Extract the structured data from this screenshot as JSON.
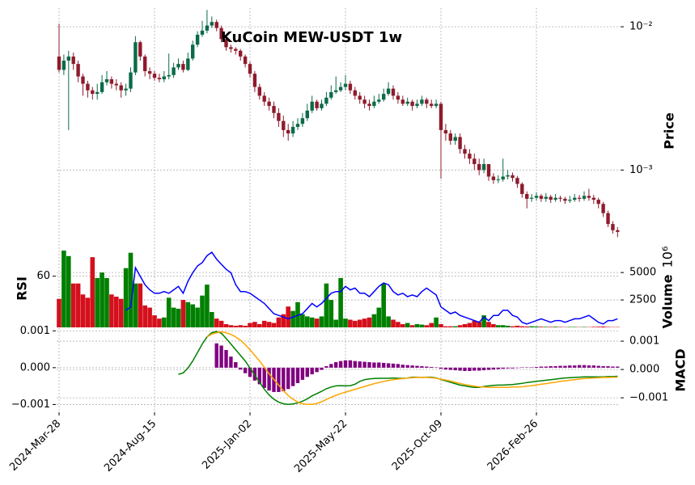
{
  "chart_data": {
    "type": "candlestick",
    "title": "KuCoin MEW-USDT 1w",
    "categories": [
      "2024-Mar-28",
      null,
      null,
      null,
      null,
      null,
      null,
      null,
      null,
      null,
      null,
      null,
      null,
      null,
      null,
      null,
      null,
      null,
      null,
      null,
      "2024-Aug-15",
      null,
      null,
      null,
      null,
      null,
      null,
      null,
      null,
      null,
      null,
      null,
      null,
      null,
      null,
      null,
      null,
      null,
      null,
      null,
      "2025-Jan-02",
      null,
      null,
      null,
      null,
      null,
      null,
      null,
      null,
      null,
      null,
      null,
      null,
      null,
      null,
      null,
      null,
      null,
      null,
      null,
      "2025-May-22",
      null,
      null,
      null,
      null,
      null,
      null,
      null,
      null,
      null,
      null,
      null,
      null,
      null,
      null,
      null,
      null,
      null,
      null,
      null,
      "2025-Oct-09",
      null,
      null,
      null,
      null,
      null,
      null,
      null,
      null,
      null,
      null,
      null,
      null,
      null,
      null,
      null,
      null,
      null,
      null,
      null,
      "2026-Feb-26",
      null,
      null,
      null,
      null,
      null,
      null,
      null,
      null,
      null,
      null,
      null,
      null,
      null,
      null,
      null,
      null,
      null
    ],
    "open": [
      0.0062,
      0.005,
      0.0058,
      0.0062,
      0.0055,
      0.0045,
      0.004,
      0.0036,
      0.0034,
      0.0035,
      0.0041,
      0.0043,
      0.004,
      0.0039,
      0.0036,
      0.0037,
      0.0048,
      0.0078,
      0.0062,
      0.0049,
      0.0047,
      0.0044,
      0.0043,
      0.0045,
      0.0046,
      0.0052,
      0.0055,
      0.005,
      0.006,
      0.0075,
      0.0088,
      0.0094,
      0.0102,
      0.0108,
      0.0098,
      0.0082,
      0.0072,
      0.007,
      0.0068,
      0.0062,
      0.0055,
      0.0047,
      0.0038,
      0.0033,
      0.003,
      0.0028,
      0.0025,
      0.0022,
      0.0019,
      0.0018,
      0.002,
      0.0021,
      0.0023,
      0.0026,
      0.003,
      0.0027,
      0.0029,
      0.0032,
      0.0035,
      0.0036,
      0.0038,
      0.004,
      0.0036,
      0.0033,
      0.0031,
      0.0029,
      0.0028,
      0.003,
      0.0031,
      0.0034,
      0.0037,
      0.0033,
      0.0031,
      0.0029,
      0.003,
      0.0028,
      0.0029,
      0.0031,
      0.0029,
      0.0028,
      0.0029,
      0.0019,
      0.0018,
      0.0016,
      0.0017,
      0.0014,
      0.0013,
      0.0012,
      0.0011,
      0.001,
      0.0011,
      0.0009,
      0.00085,
      0.00086,
      0.0009,
      0.00092,
      0.00088,
      0.0008,
      0.00068,
      0.00063,
      0.00064,
      0.00066,
      0.00063,
      0.00065,
      0.00062,
      0.00064,
      0.00063,
      0.00061,
      0.00062,
      0.00064,
      0.00063,
      0.00066,
      0.00064,
      0.00062,
      0.00058,
      0.0005,
      0.00042,
      0.00038
    ],
    "high": [
      0.0105,
      0.0064,
      0.0068,
      0.0066,
      0.0058,
      0.0047,
      0.0042,
      0.0038,
      0.004,
      0.0046,
      0.0049,
      0.0045,
      0.0043,
      0.0041,
      0.004,
      0.0052,
      0.0086,
      0.008,
      0.0064,
      0.0052,
      0.0049,
      0.0047,
      0.0049,
      0.0065,
      0.0056,
      0.006,
      0.0058,
      0.0066,
      0.008,
      0.0093,
      0.011,
      0.0131,
      0.0118,
      0.0112,
      0.0102,
      0.0085,
      0.0075,
      0.0072,
      0.007,
      0.0064,
      0.0057,
      0.0049,
      0.004,
      0.0035,
      0.0032,
      0.003,
      0.0027,
      0.0024,
      0.0021,
      0.0022,
      0.0023,
      0.0025,
      0.0029,
      0.0033,
      0.0031,
      0.0031,
      0.0035,
      0.0039,
      0.0045,
      0.0041,
      0.0046,
      0.0042,
      0.0038,
      0.0035,
      0.0033,
      0.0031,
      0.0033,
      0.0034,
      0.0037,
      0.0041,
      0.0039,
      0.0035,
      0.0033,
      0.0032,
      0.0031,
      0.0031,
      0.0033,
      0.0032,
      0.0031,
      0.0031,
      0.003,
      0.0021,
      0.0019,
      0.0018,
      0.0018,
      0.0015,
      0.0014,
      0.0013,
      0.0012,
      0.0012,
      0.0011,
      0.00095,
      0.00092,
      0.0012,
      0.001,
      0.00096,
      0.00091,
      0.00082,
      0.00071,
      0.00068,
      0.0007,
      0.00068,
      0.00069,
      0.00067,
      0.00068,
      0.00066,
      0.00065,
      0.00066,
      0.00068,
      0.00067,
      0.00071,
      0.00074,
      0.00067,
      0.00064,
      0.0006,
      0.00052,
      0.00044,
      0.0004
    ],
    "low": [
      0.0048,
      0.0046,
      0.0019,
      0.005,
      0.0041,
      0.0033,
      0.0032,
      0.0031,
      0.0031,
      0.0034,
      0.0039,
      0.0037,
      0.0036,
      0.0032,
      0.0033,
      0.0035,
      0.0046,
      0.0058,
      0.0045,
      0.0043,
      0.0042,
      0.0041,
      0.0041,
      0.0043,
      0.0044,
      0.005,
      0.0048,
      0.0049,
      0.0058,
      0.0072,
      0.0085,
      0.009,
      0.0098,
      0.0093,
      0.0078,
      0.0068,
      0.0066,
      0.0064,
      0.0058,
      0.0052,
      0.0044,
      0.0035,
      0.0031,
      0.0028,
      0.0026,
      0.0023,
      0.002,
      0.0017,
      0.0016,
      0.0017,
      0.0019,
      0.002,
      0.0022,
      0.0025,
      0.0026,
      0.0026,
      0.0028,
      0.0031,
      0.0034,
      0.0035,
      0.0036,
      0.0034,
      0.0031,
      0.0029,
      0.0027,
      0.0026,
      0.0027,
      0.0029,
      0.003,
      0.0033,
      0.0031,
      0.0029,
      0.0028,
      0.0028,
      0.0026,
      0.0027,
      0.0028,
      0.0027,
      0.0027,
      0.0027,
      0.00087,
      0.0016,
      0.0015,
      0.0015,
      0.0013,
      0.0012,
      0.0011,
      0.001,
      0.00092,
      0.00095,
      0.00084,
      0.0008,
      0.00081,
      0.00083,
      0.00086,
      0.00083,
      0.00075,
      0.00064,
      0.00054,
      0.0006,
      0.00061,
      0.0006,
      0.0006,
      0.00059,
      0.0006,
      0.0006,
      0.00058,
      0.00059,
      0.0006,
      0.0006,
      0.00061,
      0.00061,
      0.00058,
      0.00054,
      0.00047,
      0.0004,
      0.00036,
      0.00034
    ],
    "close": [
      0.005,
      0.0058,
      0.0062,
      0.0055,
      0.0045,
      0.004,
      0.0036,
      0.0034,
      0.0035,
      0.0041,
      0.0043,
      0.004,
      0.0039,
      0.0036,
      0.0037,
      0.0048,
      0.0078,
      0.0062,
      0.0049,
      0.0047,
      0.0044,
      0.0043,
      0.0045,
      0.0046,
      0.0052,
      0.0055,
      0.005,
      0.006,
      0.0075,
      0.0088,
      0.0094,
      0.0102,
      0.0108,
      0.0098,
      0.0082,
      0.0072,
      0.007,
      0.0068,
      0.0062,
      0.0055,
      0.0047,
      0.0038,
      0.0033,
      0.003,
      0.0028,
      0.0025,
      0.0022,
      0.0019,
      0.0018,
      0.002,
      0.0021,
      0.0023,
      0.0026,
      0.003,
      0.0027,
      0.0029,
      0.0032,
      0.0035,
      0.0036,
      0.0038,
      0.004,
      0.0036,
      0.0033,
      0.0031,
      0.0029,
      0.0028,
      0.003,
      0.0031,
      0.0034,
      0.0037,
      0.0033,
      0.0031,
      0.0029,
      0.003,
      0.0028,
      0.0029,
      0.0031,
      0.0029,
      0.0028,
      0.0029,
      0.0019,
      0.0018,
      0.0016,
      0.0017,
      0.0014,
      0.0013,
      0.0012,
      0.0011,
      0.001,
      0.0011,
      0.0009,
      0.00085,
      0.00086,
      0.0009,
      0.00092,
      0.00088,
      0.0008,
      0.00068,
      0.00063,
      0.00064,
      0.00066,
      0.00063,
      0.00065,
      0.00062,
      0.00064,
      0.00063,
      0.00061,
      0.00062,
      0.00064,
      0.00063,
      0.00066,
      0.00064,
      0.00062,
      0.00058,
      0.0005,
      0.00042,
      0.00038,
      0.00037
    ],
    "up_color": "#0b6b48",
    "down_color": "#8e1b2c",
    "ylabel": "Price",
    "log_scale": true,
    "grid": true,
    "ylim": [
      0.0003,
      0.0135
    ],
    "yticks": [
      {
        "value": 0.01,
        "label": "10⁻²"
      },
      {
        "value": 0.001,
        "label": "10⁻³"
      }
    ],
    "volume": {
      "label": "Volume",
      "offset_label": "10⁶",
      "up_color": "#008000",
      "down_color": "#d4101c",
      "ylim": [
        0,
        7000
      ],
      "yticks": [
        2500,
        5000
      ],
      "values": [
        2600,
        7000,
        6500,
        4000,
        4000,
        3000,
        2700,
        6400,
        4500,
        5000,
        4500,
        3000,
        2800,
        2600,
        5400,
        6800,
        4000,
        4000,
        2000,
        1800,
        1100,
        800,
        900,
        2700,
        1800,
        1700,
        2500,
        2300,
        2100,
        1800,
        2900,
        3900,
        1400,
        800,
        600,
        300,
        200,
        150,
        200,
        150,
        400,
        500,
        300,
        600,
        500,
        400,
        900,
        1200,
        1900,
        1500,
        2300,
        1200,
        1000,
        900,
        800,
        1000,
        4000,
        2500,
        700,
        4500,
        800,
        700,
        600,
        700,
        800,
        900,
        1200,
        1800,
        4000,
        1000,
        700,
        500,
        300,
        400,
        200,
        300,
        250,
        200,
        400,
        900,
        300,
        100,
        100,
        100,
        200,
        300,
        400,
        600,
        500,
        1100,
        500,
        300,
        200,
        200,
        150,
        100,
        150,
        100,
        80,
        100,
        80,
        60,
        50,
        50,
        60,
        40,
        30,
        40,
        40,
        30,
        40,
        30,
        50,
        60,
        80,
        40,
        30,
        30
      ]
    },
    "rsi": {
      "label": "RSI",
      "color": "#0000ff",
      "ylim": [
        30,
        75
      ],
      "yticks": [
        60
      ],
      "values": [
        null,
        null,
        null,
        null,
        null,
        null,
        null,
        null,
        null,
        null,
        null,
        null,
        null,
        null,
        40,
        42,
        65,
        60,
        55,
        52,
        50,
        50,
        51,
        50,
        52,
        54,
        50,
        57,
        62,
        66,
        68,
        72,
        74,
        70,
        67,
        64,
        62,
        55,
        51,
        51,
        50,
        48,
        46,
        44,
        41,
        38,
        37,
        36,
        35,
        36,
        37,
        38,
        41,
        44,
        42,
        44,
        47,
        50,
        51,
        51,
        54,
        52,
        53,
        50,
        50,
        48,
        51,
        54,
        56,
        55,
        51,
        49,
        50,
        48,
        49,
        48,
        51,
        53,
        51,
        49,
        42,
        40,
        38,
        39,
        37,
        36,
        35,
        34,
        33,
        36,
        34,
        37,
        37,
        40,
        40,
        37,
        36,
        33,
        32,
        33,
        34,
        35,
        34,
        33,
        34,
        34,
        33,
        34,
        35,
        35,
        36,
        37,
        35,
        33,
        32,
        34,
        34,
        35
      ]
    },
    "macd": {
      "label": "MACD",
      "ylim": [
        -0.00121,
        0.00105
      ],
      "yticks": [
        {
          "value": 0.001,
          "label": "0.001"
        },
        {
          "value": 0,
          "label": "0.000"
        },
        {
          "value": -0.001,
          "label": "−0.001"
        }
      ],
      "y2lim": [
        -0.00151,
        0.00143
      ],
      "y2ticks": [
        {
          "value": 0.001,
          "label": "0.001"
        },
        {
          "value": 0,
          "label": "0.000"
        },
        {
          "value": -0.001,
          "label": "−0.001"
        }
      ],
      "histogram_color": "#800080",
      "histogram": [
        null,
        null,
        null,
        null,
        null,
        null,
        null,
        null,
        null,
        null,
        null,
        null,
        null,
        null,
        null,
        null,
        null,
        null,
        null,
        null,
        null,
        null,
        null,
        null,
        null,
        null,
        null,
        null,
        null,
        null,
        null,
        null,
        null,
        0.00066,
        0.0006,
        0.00048,
        0.0003,
        0.00015,
        -5e-05,
        -0.00015,
        -0.00025,
        -0.00035,
        -0.00045,
        -0.00055,
        -0.00062,
        -0.00066,
        -0.00066,
        -0.00064,
        -0.00058,
        -0.0005,
        -0.00042,
        -0.00033,
        -0.00025,
        -0.00018,
        -0.00012,
        -6e-05,
        4e-05,
        0.0001,
        0.00015,
        0.00018,
        0.0002,
        0.0002,
        0.00018,
        0.00017,
        0.00016,
        0.00015,
        0.00014,
        0.00014,
        0.00013,
        0.00012,
        0.00011,
        0.0001,
        8e-05,
        7e-05,
        6e-05,
        5e-05,
        4e-05,
        3e-05,
        2e-05,
        1e-05,
        -3e-05,
        -5e-05,
        -6e-05,
        -7e-05,
        -8e-05,
        -9e-05,
        -9e-05,
        -8e-05,
        -8e-05,
        -7e-05,
        -6e-05,
        -5e-05,
        -4e-05,
        -3e-05,
        -2e-05,
        -2e-05,
        -1e-05,
        1e-05,
        1e-05,
        1e-05,
        2e-05,
        3e-05,
        3e-05,
        4e-05,
        4e-05,
        5e-05,
        5e-05,
        6e-05,
        6e-05,
        7e-05,
        7e-05,
        6e-05,
        6e-05,
        5e-05,
        4e-05,
        4e-05,
        3e-05,
        3e-05
      ],
      "series": [
        {
          "color": "#008000",
          "axis": "y2",
          "values": [
            null,
            null,
            null,
            null,
            null,
            null,
            null,
            null,
            null,
            null,
            null,
            null,
            null,
            null,
            null,
            null,
            null,
            null,
            null,
            null,
            null,
            null,
            null,
            null,
            null,
            -0.00017,
            -0.00012,
            5e-05,
            0.0003,
            0.0006,
            0.0009,
            0.00115,
            0.0013,
            0.00134,
            0.00128,
            0.0011,
            0.0009,
            0.0007,
            0.0005,
            0.0003,
            5e-05,
            -0.0002,
            -0.00045,
            -0.0007,
            -0.0009,
            -0.00105,
            -0.00115,
            -0.00121,
            -0.00123,
            -0.00122,
            -0.00118,
            -0.00112,
            -0.00104,
            -0.00093,
            -0.00085,
            -0.00077,
            -0.00068,
            -0.00062,
            -0.00058,
            -0.00057,
            -0.00058,
            -0.00057,
            -0.00052,
            -0.00042,
            -0.00036,
            -0.00033,
            -0.00032,
            -0.00031,
            -0.00031,
            -0.00031,
            -0.0003,
            -0.00031,
            -0.00031,
            -0.0003,
            -0.00027,
            -0.00027,
            -0.00028,
            -0.00027,
            -0.00027,
            -0.0003,
            -0.00035,
            -0.0004,
            -0.00045,
            -0.0005,
            -0.00055,
            -0.00058,
            -0.00061,
            -0.00063,
            -0.00063,
            -0.0006,
            -0.00058,
            -0.00056,
            -0.00055,
            -0.00055,
            -0.00054,
            -0.00053,
            -0.00051,
            -0.00049,
            -0.00046,
            -0.00044,
            -0.00042,
            -0.0004,
            -0.00038,
            -0.00036,
            -0.00034,
            -0.00032,
            -0.0003,
            -0.00029,
            -0.00028,
            -0.00027,
            -0.00026,
            -0.00026,
            -0.00026,
            -0.00026,
            -0.00026,
            -0.00025,
            -0.00025,
            -0.00024
          ]
        },
        {
          "color": "#ffa500",
          "axis": "y2",
          "values": [
            null,
            null,
            null,
            null,
            null,
            null,
            null,
            null,
            null,
            null,
            null,
            null,
            null,
            null,
            null,
            null,
            null,
            null,
            null,
            null,
            null,
            null,
            null,
            null,
            null,
            null,
            null,
            null,
            null,
            null,
            null,
            0.00115,
            0.00125,
            0.0013,
            0.00133,
            0.0013,
            0.00124,
            0.00115,
            0.00103,
            0.00088,
            0.0007,
            0.0005,
            0.0003,
            8e-05,
            -0.00015,
            -0.00035,
            -0.00055,
            -0.00075,
            -0.00092,
            -0.00105,
            -0.00115,
            -0.00121,
            -0.00123,
            -0.00123,
            -0.0012,
            -0.00114,
            -0.00106,
            -0.00098,
            -0.00091,
            -0.00085,
            -0.0008,
            -0.00075,
            -0.0007,
            -0.00065,
            -0.0006,
            -0.00055,
            -0.0005,
            -0.00046,
            -0.00042,
            -0.00039,
            -0.00036,
            -0.00034,
            -0.00032,
            -0.0003,
            -0.00029,
            -0.00028,
            -0.00028,
            -0.00028,
            -0.00029,
            -0.00031,
            -0.00034,
            -0.00037,
            -0.00041,
            -0.00045,
            -0.00049,
            -0.00053,
            -0.00056,
            -0.00059,
            -0.00061,
            -0.00062,
            -0.00063,
            -0.00063,
            -0.00063,
            -0.00063,
            -0.00063,
            -0.00062,
            -0.00062,
            -0.00061,
            -0.00059,
            -0.00057,
            -0.00055,
            -0.00052,
            -0.0005,
            -0.00047,
            -0.00045,
            -0.00042,
            -0.0004,
            -0.00038,
            -0.00036,
            -0.00034,
            -0.00032,
            -0.00031,
            -0.0003,
            -0.00029,
            -0.00028,
            -0.00028,
            -0.00027,
            -0.00027
          ]
        }
      ]
    }
  }
}
